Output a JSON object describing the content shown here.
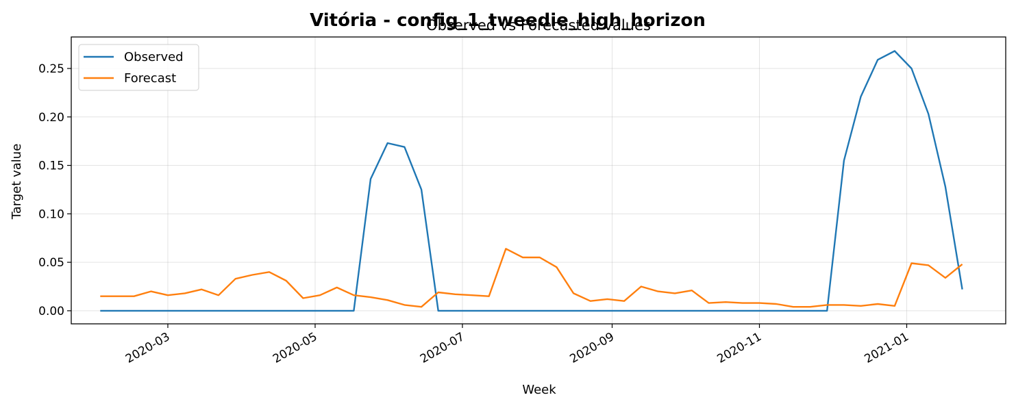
{
  "chart_data": {
    "type": "line",
    "title": "Vitória - config_1_tweedie_high_horizon",
    "subtitle": "Observed vs Forecasted values",
    "xlabel": "Week",
    "ylabel": "Target value",
    "grid": true,
    "legend_position": "top-left",
    "xlim": [
      "2020-01-21",
      "2021-02-11"
    ],
    "ylim": [
      -0.0135,
      0.2825
    ],
    "xticks": [
      "2020-03",
      "2020-05",
      "2020-07",
      "2020-09",
      "2020-11",
      "2021-01"
    ],
    "yticks": [
      "0.00",
      "0.05",
      "0.10",
      "0.15",
      "0.20",
      "0.25"
    ],
    "x": [
      "2020-02-02",
      "2020-02-09",
      "2020-02-16",
      "2020-02-23",
      "2020-03-01",
      "2020-03-08",
      "2020-03-15",
      "2020-03-22",
      "2020-03-29",
      "2020-04-05",
      "2020-04-12",
      "2020-04-19",
      "2020-04-26",
      "2020-05-03",
      "2020-05-10",
      "2020-05-17",
      "2020-05-24",
      "2020-05-31",
      "2020-06-07",
      "2020-06-14",
      "2020-06-21",
      "2020-06-28",
      "2020-07-05",
      "2020-07-12",
      "2020-07-19",
      "2020-07-26",
      "2020-08-02",
      "2020-08-09",
      "2020-08-16",
      "2020-08-23",
      "2020-08-30",
      "2020-09-06",
      "2020-09-13",
      "2020-09-20",
      "2020-09-27",
      "2020-10-04",
      "2020-10-11",
      "2020-10-18",
      "2020-10-25",
      "2020-11-01",
      "2020-11-08",
      "2020-11-15",
      "2020-11-22",
      "2020-11-29",
      "2020-12-06",
      "2020-12-13",
      "2020-12-20",
      "2020-12-27",
      "2021-01-03",
      "2021-01-10",
      "2021-01-17",
      "2021-01-24"
    ],
    "series": [
      {
        "name": "Observed",
        "color": "#1f77b4",
        "values": [
          0,
          0,
          0,
          0,
          0,
          0,
          0,
          0,
          0,
          0,
          0,
          0,
          0,
          0,
          0,
          0,
          0.136,
          0.173,
          0.169,
          0.125,
          0,
          0,
          0,
          0,
          0,
          0,
          0,
          0,
          0,
          0,
          0,
          0,
          0,
          0,
          0,
          0,
          0,
          0,
          0,
          0,
          0,
          0,
          0,
          0,
          0.155,
          0.221,
          0.259,
          0.268,
          0.25,
          0.203,
          0.128,
          0.022
        ]
      },
      {
        "name": "Forecast",
        "color": "#ff7f0e",
        "values": [
          0.015,
          0.015,
          0.015,
          0.02,
          0.016,
          0.018,
          0.022,
          0.016,
          0.033,
          0.037,
          0.04,
          0.031,
          0.013,
          0.016,
          0.024,
          0.016,
          0.014,
          0.011,
          0.006,
          0.004,
          0.019,
          0.017,
          0.016,
          0.015,
          0.064,
          0.055,
          0.055,
          0.045,
          0.018,
          0.01,
          0.012,
          0.01,
          0.025,
          0.02,
          0.018,
          0.021,
          0.008,
          0.009,
          0.008,
          0.008,
          0.007,
          0.004,
          0.004,
          0.006,
          0.006,
          0.005,
          0.007,
          0.005,
          0.049,
          0.047,
          0.034,
          0.048
        ]
      }
    ]
  }
}
